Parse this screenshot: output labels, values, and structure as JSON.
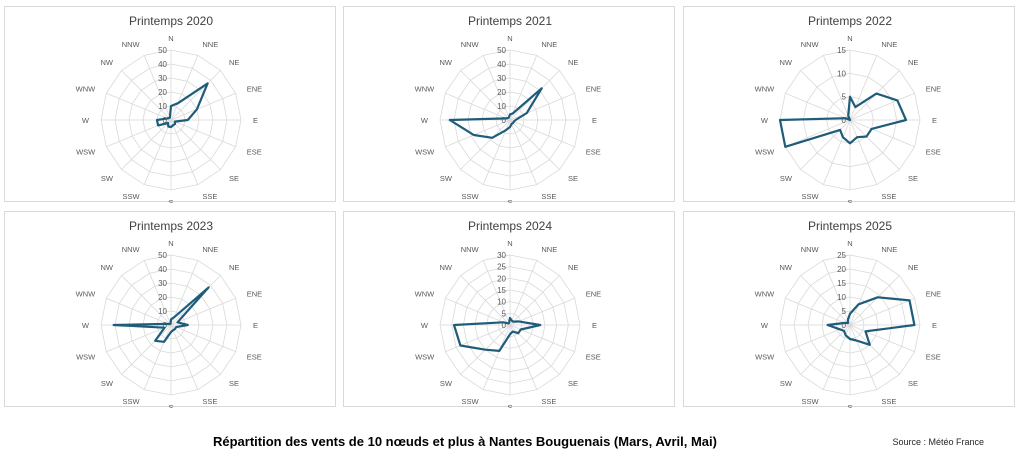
{
  "footer": {
    "title": "Répartition des vents de 10 nœuds et plus à Nantes Bouguenais (Mars, Avril, Mai)",
    "source": "Source : Météo France"
  },
  "directions": [
    "N",
    "NNE",
    "NE",
    "ENE",
    "E",
    "ESE",
    "SE",
    "SSE",
    "S",
    "SSW",
    "SW",
    "WSW",
    "W",
    "WNW",
    "NW",
    "NNW"
  ],
  "colors": {
    "series": "#1f5c7a",
    "grid": "#d9d9d9",
    "label": "#595959"
  },
  "chart_data": [
    {
      "type": "radar",
      "title": "Printemps 2020",
      "ticks": [
        0,
        10,
        20,
        30,
        40,
        50
      ],
      "rmax": 50,
      "values": [
        10,
        13,
        37,
        20,
        12,
        3,
        4,
        4,
        5,
        5,
        3,
        10,
        10,
        3,
        2,
        2
      ]
    },
    {
      "type": "radar",
      "title": "Printemps 2021",
      "ticks": [
        0,
        10,
        20,
        30,
        40,
        50
      ],
      "rmax": 50,
      "values": [
        4,
        5,
        32,
        13,
        4,
        3,
        3,
        3,
        5,
        8,
        18,
        28,
        43,
        3,
        2,
        2
      ]
    },
    {
      "type": "radar",
      "title": "Printemps 2022",
      "ticks": [
        0,
        5,
        10,
        15
      ],
      "rmax": 15,
      "values": [
        5,
        3,
        8,
        11,
        12,
        5,
        5,
        4,
        5,
        4,
        3,
        15,
        15,
        1,
        0,
        1
      ]
    },
    {
      "type": "radar",
      "title": "Printemps 2023",
      "ticks": [
        0,
        10,
        20,
        30,
        40,
        50
      ],
      "rmax": 50,
      "values": [
        4,
        6,
        38,
        5,
        12,
        4,
        4,
        4,
        5,
        13,
        16,
        5,
        41,
        2,
        1,
        1
      ]
    },
    {
      "type": "radar",
      "title": "Printemps 2024",
      "ticks": [
        0,
        5,
        10,
        15,
        20,
        25,
        30
      ],
      "rmax": 30,
      "values": [
        3,
        2,
        2,
        4,
        13,
        5,
        5,
        3,
        4,
        12,
        15,
        23,
        24,
        3,
        1,
        1
      ]
    },
    {
      "type": "radar",
      "title": "Printemps 2025",
      "ticks": [
        0,
        5,
        10,
        15,
        20,
        25
      ],
      "rmax": 25,
      "values": [
        4,
        8,
        14,
        23,
        23,
        6,
        10,
        6,
        5,
        4,
        3,
        4,
        8,
        2,
        1,
        2
      ]
    }
  ]
}
